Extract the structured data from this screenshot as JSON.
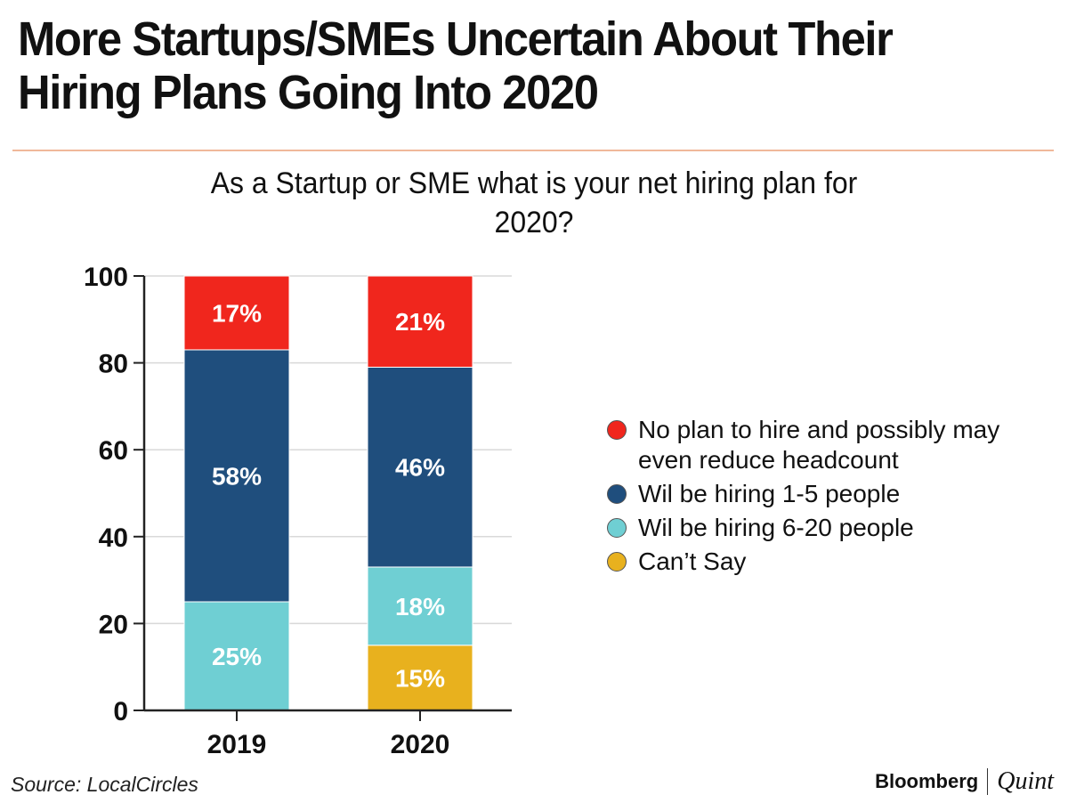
{
  "headline": "More Startups/SMEs Uncertain About Their Hiring Plans Going Into 2020",
  "chart_data": {
    "type": "bar",
    "stacked": true,
    "title": "As a Startup or SME what is your net hiring plan for 2020?",
    "categories": [
      "2019",
      "2020"
    ],
    "ylim": [
      0,
      100
    ],
    "yticks": [
      0,
      20,
      40,
      60,
      80,
      100
    ],
    "grid": true,
    "legend_position": "right",
    "series": [
      {
        "name": "Can't Say",
        "legend_label": "Can’t Say",
        "color": "#e8b11e",
        "values": [
          0,
          15
        ]
      },
      {
        "name": "Wil be hiring 6-20 people",
        "legend_label": "Wil be hiring 6-20 people",
        "color": "#6fcfd3",
        "values": [
          25,
          18
        ]
      },
      {
        "name": "Wil be hiring 1-5 people",
        "legend_label": "Wil be hiring 1-5 people",
        "color": "#1f4e7d",
        "values": [
          58,
          46
        ]
      },
      {
        "name": "No plan to hire and possibly may even reduce headcount",
        "legend_label": "No plan to hire and possibly may even reduce headcount",
        "color": "#f0261d",
        "values": [
          17,
          21
        ]
      }
    ]
  },
  "legend_order": [
    3,
    2,
    1,
    0
  ],
  "source": "Source: LocalCircles",
  "brand": {
    "primary": "Bloomberg",
    "secondary": "Quint"
  }
}
